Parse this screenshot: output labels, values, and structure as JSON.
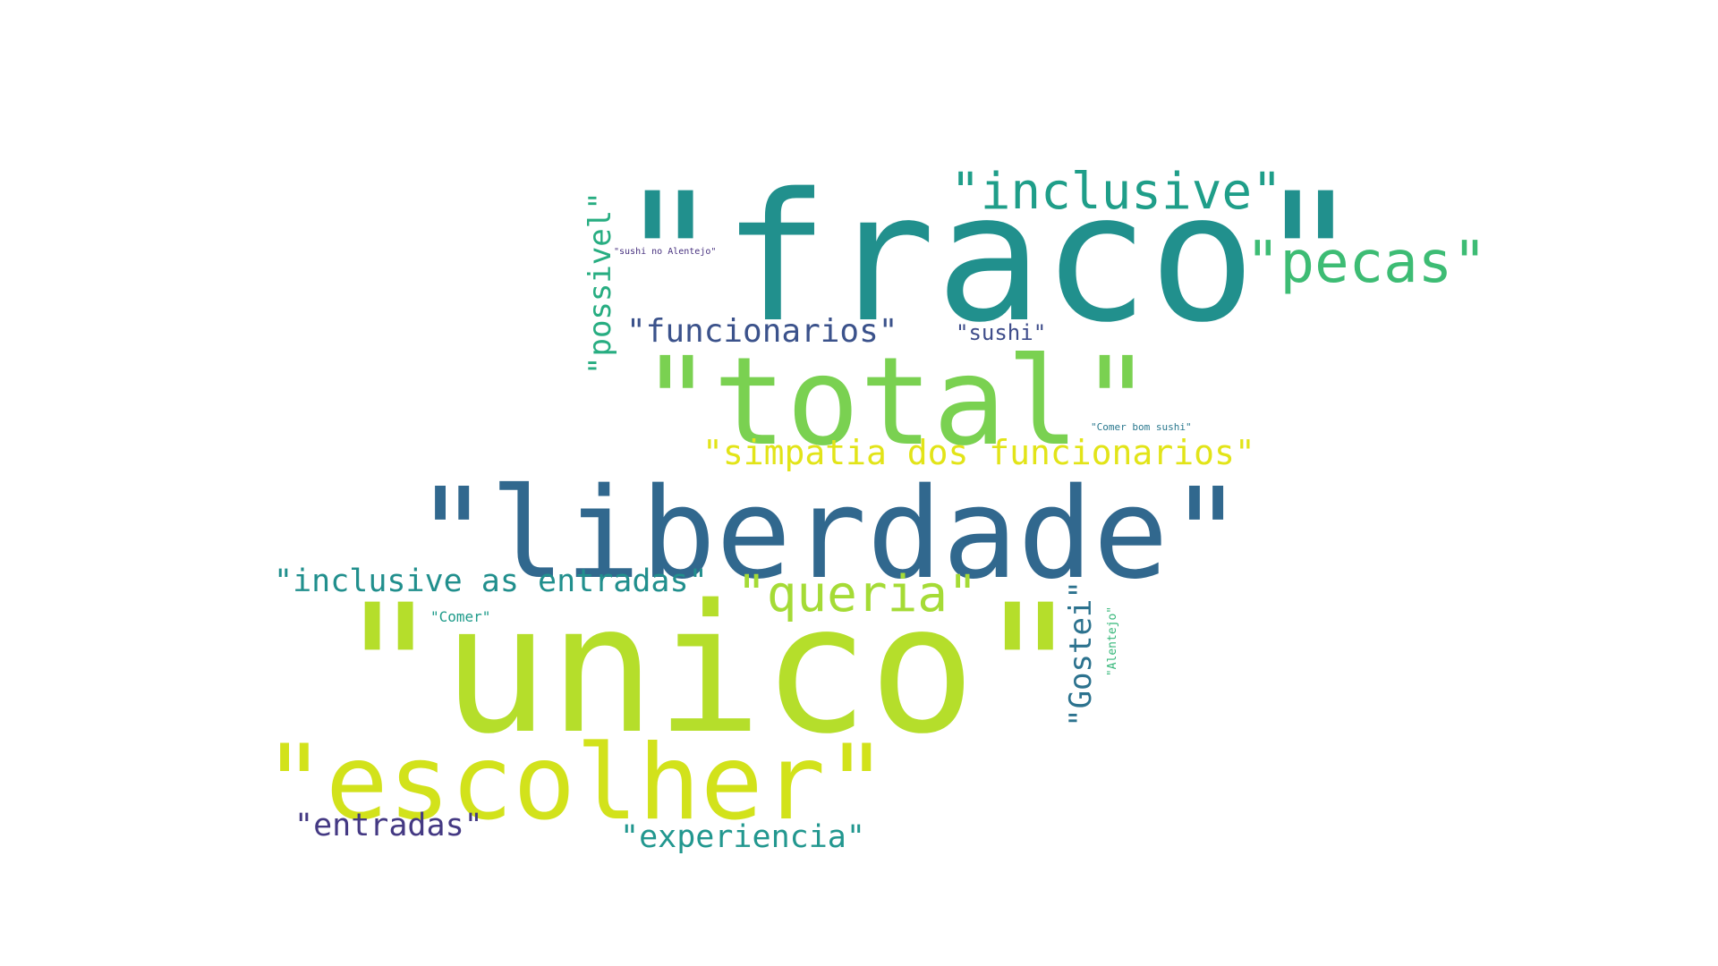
{
  "words": {
    "fraco": {
      "text": "\"fraco\"",
      "color": "#21908d"
    },
    "unico": {
      "text": "\"unico\"",
      "color": "#b5de2b"
    },
    "liberdade": {
      "text": "\"liberdade\"",
      "color": "#31688e"
    },
    "total": {
      "text": "\"total\"",
      "color": "#7ad151"
    },
    "escolher": {
      "text": "\"escolher\"",
      "color": "#d2e21b"
    },
    "pecas": {
      "text": "\"pecas\"",
      "color": "#3dbc74"
    },
    "inclusive": {
      "text": "\"inclusive\"",
      "color": "#1f9e89"
    },
    "queria": {
      "text": "\"queria\"",
      "color": "#a5db36"
    },
    "simpatia": {
      "text": "\"simpatia dos funcionarios\"",
      "color": "#e2e418"
    },
    "inclusive_as": {
      "text": "\"inclusive as entradas\"",
      "color": "#218f8d"
    },
    "funcionarios": {
      "text": "\"funcionarios\"",
      "color": "#3b528b"
    },
    "possivel": {
      "text": "\"possivel\"",
      "color": "#27ad81"
    },
    "experiencia": {
      "text": "\"experiencia\"",
      "color": "#22978f"
    },
    "entradas": {
      "text": "\"entradas\"",
      "color": "#443983"
    },
    "gostei": {
      "text": "\"Gostei\"",
      "color": "#2c728e"
    },
    "sushi": {
      "text": "\"sushi\"",
      "color": "#3e4c8a"
    },
    "comer": {
      "text": "\"Comer\"",
      "color": "#1e9b8a"
    },
    "alentejo": {
      "text": "\"Alentejo\"",
      "color": "#35b779"
    },
    "comer_bom_sushi": {
      "text": "\"Comer bom sushi\"",
      "color": "#2a788e"
    },
    "sushi_alentejo": {
      "text": "\"sushi no Alentejo\"",
      "color": "#46307e"
    }
  }
}
